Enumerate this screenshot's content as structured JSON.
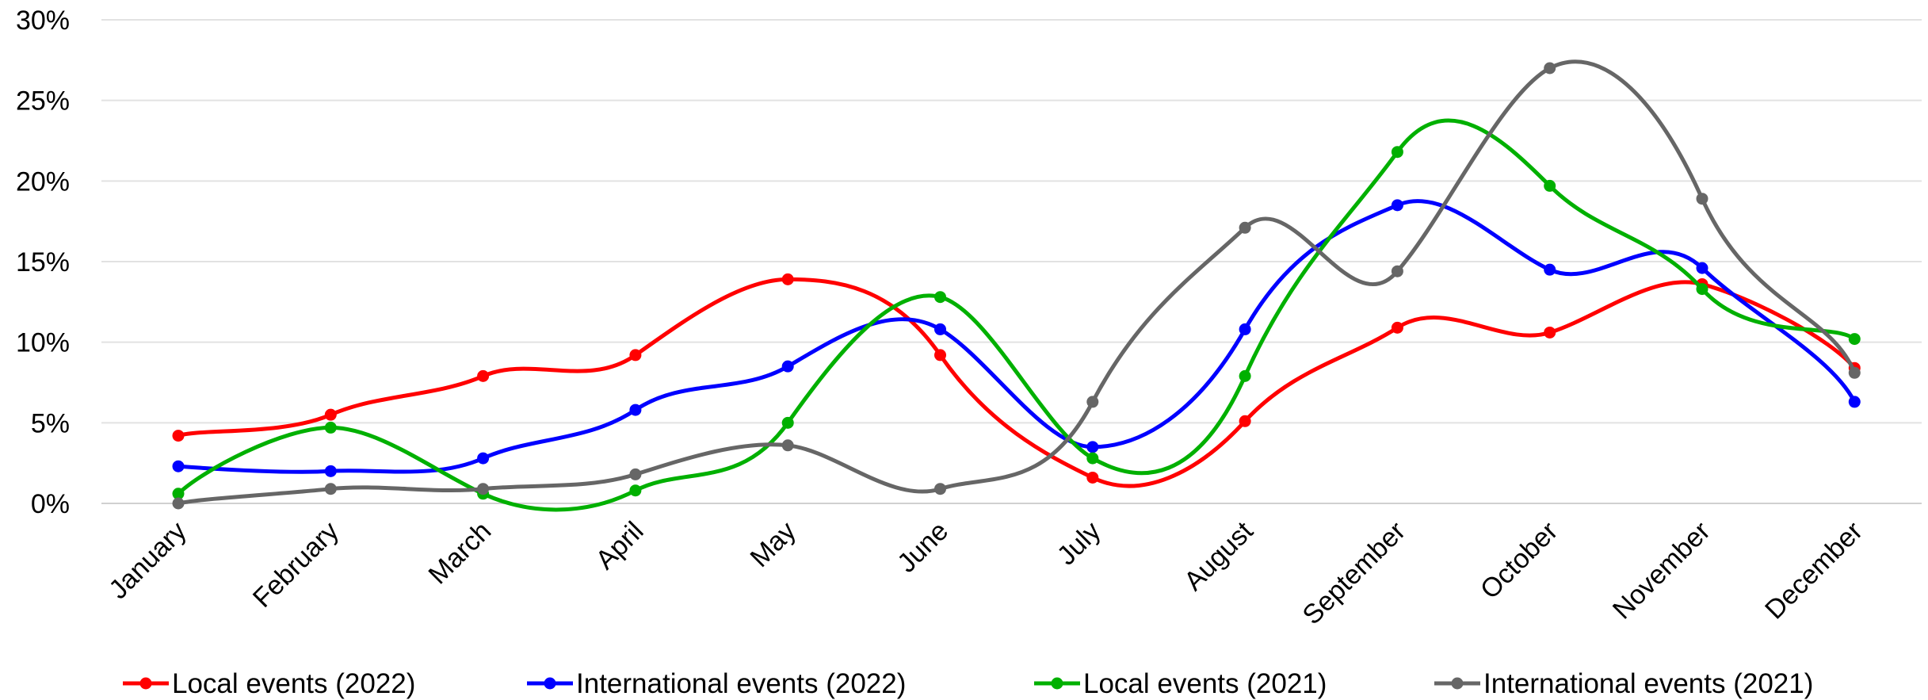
{
  "chart_data": {
    "type": "line",
    "smooth": true,
    "title": "",
    "xlabel": "",
    "ylabel": "",
    "categories": [
      "January",
      "February",
      "March",
      "April",
      "May",
      "June",
      "July",
      "August",
      "September",
      "October",
      "November",
      "December"
    ],
    "y_ticks": [
      "0%",
      "5%",
      "10%",
      "15%",
      "20%",
      "25%",
      "30%"
    ],
    "ylim": [
      0,
      30
    ],
    "y_unit": "%",
    "grid": "horizontal",
    "legend_position": "bottom",
    "series": [
      {
        "name": "Local events (2022)",
        "color": "#ff0000",
        "values": [
          4.2,
          5.5,
          7.9,
          9.2,
          13.9,
          9.2,
          1.6,
          5.1,
          10.9,
          10.6,
          13.6,
          8.4
        ]
      },
      {
        "name": "International events (2022)",
        "color": "#0000ff",
        "values": [
          2.3,
          2.0,
          2.8,
          5.8,
          8.5,
          10.8,
          3.5,
          10.8,
          18.5,
          14.5,
          14.6,
          6.3
        ]
      },
      {
        "name": "Local events (2021)",
        "color": "#00b000",
        "values": [
          0.6,
          4.7,
          0.6,
          0.8,
          5.0,
          12.8,
          2.8,
          7.9,
          21.8,
          19.7,
          13.3,
          10.2
        ]
      },
      {
        "name": "International events (2021)",
        "color": "#666666",
        "values": [
          0.0,
          0.9,
          0.9,
          1.8,
          3.6,
          0.9,
          6.3,
          17.1,
          14.4,
          27.0,
          18.9,
          8.1
        ]
      }
    ]
  }
}
